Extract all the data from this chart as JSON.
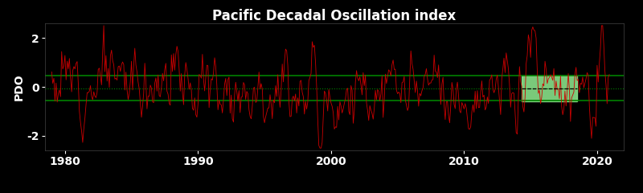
{
  "title": "Pacific Decadal Oscillation index",
  "ylabel": "PDO",
  "xlim": [
    1978.5,
    2022
  ],
  "ylim": [
    -2.6,
    2.6
  ],
  "yticks": [
    2,
    0,
    -2
  ],
  "xticks": [
    1980,
    1990,
    2000,
    2010,
    2020
  ],
  "background_color": "#000000",
  "line_color": "#cc0000",
  "green_solid_line1": 0.45,
  "green_solid_line2": -0.55,
  "green_dotted_line": -0.05,
  "black_dotted_line": -0.05,
  "highlight_xmin": 2014.3,
  "highlight_xmax": 2018.5,
  "highlight_ymin": -0.58,
  "highlight_ymax": 0.45,
  "highlight_color": "#90EE90",
  "title_fontsize": 12,
  "axis_fontsize": 10,
  "tick_fontsize": 10
}
